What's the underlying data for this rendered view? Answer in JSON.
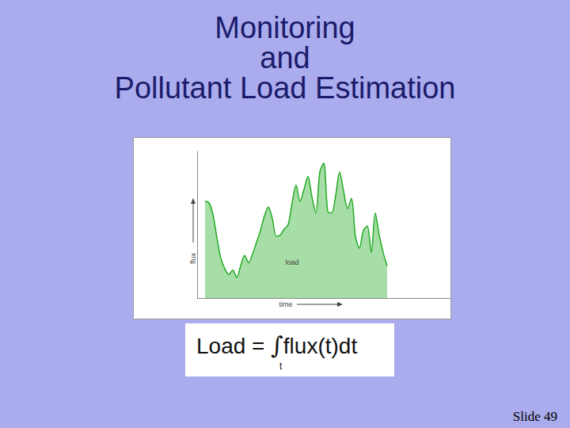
{
  "chart_data": {
    "type": "area",
    "x": [
      2,
      3,
      4,
      5,
      6,
      7,
      8,
      9,
      10,
      11,
      12,
      13,
      14,
      15,
      16,
      17,
      18,
      19,
      20,
      21,
      22,
      23,
      24,
      25,
      26,
      27,
      28,
      29,
      30,
      31,
      32,
      33,
      34,
      35,
      36,
      37,
      38,
      39,
      40,
      41,
      42,
      43,
      44,
      45,
      46,
      47,
      48
    ],
    "values": [
      66,
      65,
      57,
      41,
      27,
      20,
      16,
      19,
      14,
      22,
      29,
      24,
      30,
      38,
      46,
      56,
      62,
      54,
      42,
      43,
      47,
      50,
      65,
      77,
      66,
      74,
      83,
      69,
      58,
      86,
      92,
      59,
      58,
      70,
      86,
      73,
      61,
      68,
      42,
      34,
      46,
      49,
      31,
      58,
      43,
      31,
      22
    ],
    "color": "#22aa22",
    "xlim": [
      0,
      64
    ],
    "ylim": [
      0,
      100
    ],
    "tick_labels": false,
    "grid": false,
    "x_label": "time",
    "y_label": "flux",
    "annotations": [
      "load"
    ]
  },
  "slide": {
    "title": [
      "Monitoring",
      "and",
      "Pollutant Load Estimation"
    ],
    "formula": {
      "lhs": "Load =",
      "integral": "∫",
      "integrand": "flux(t)dt",
      "limit": "t"
    },
    "footer": "Slide 49"
  }
}
